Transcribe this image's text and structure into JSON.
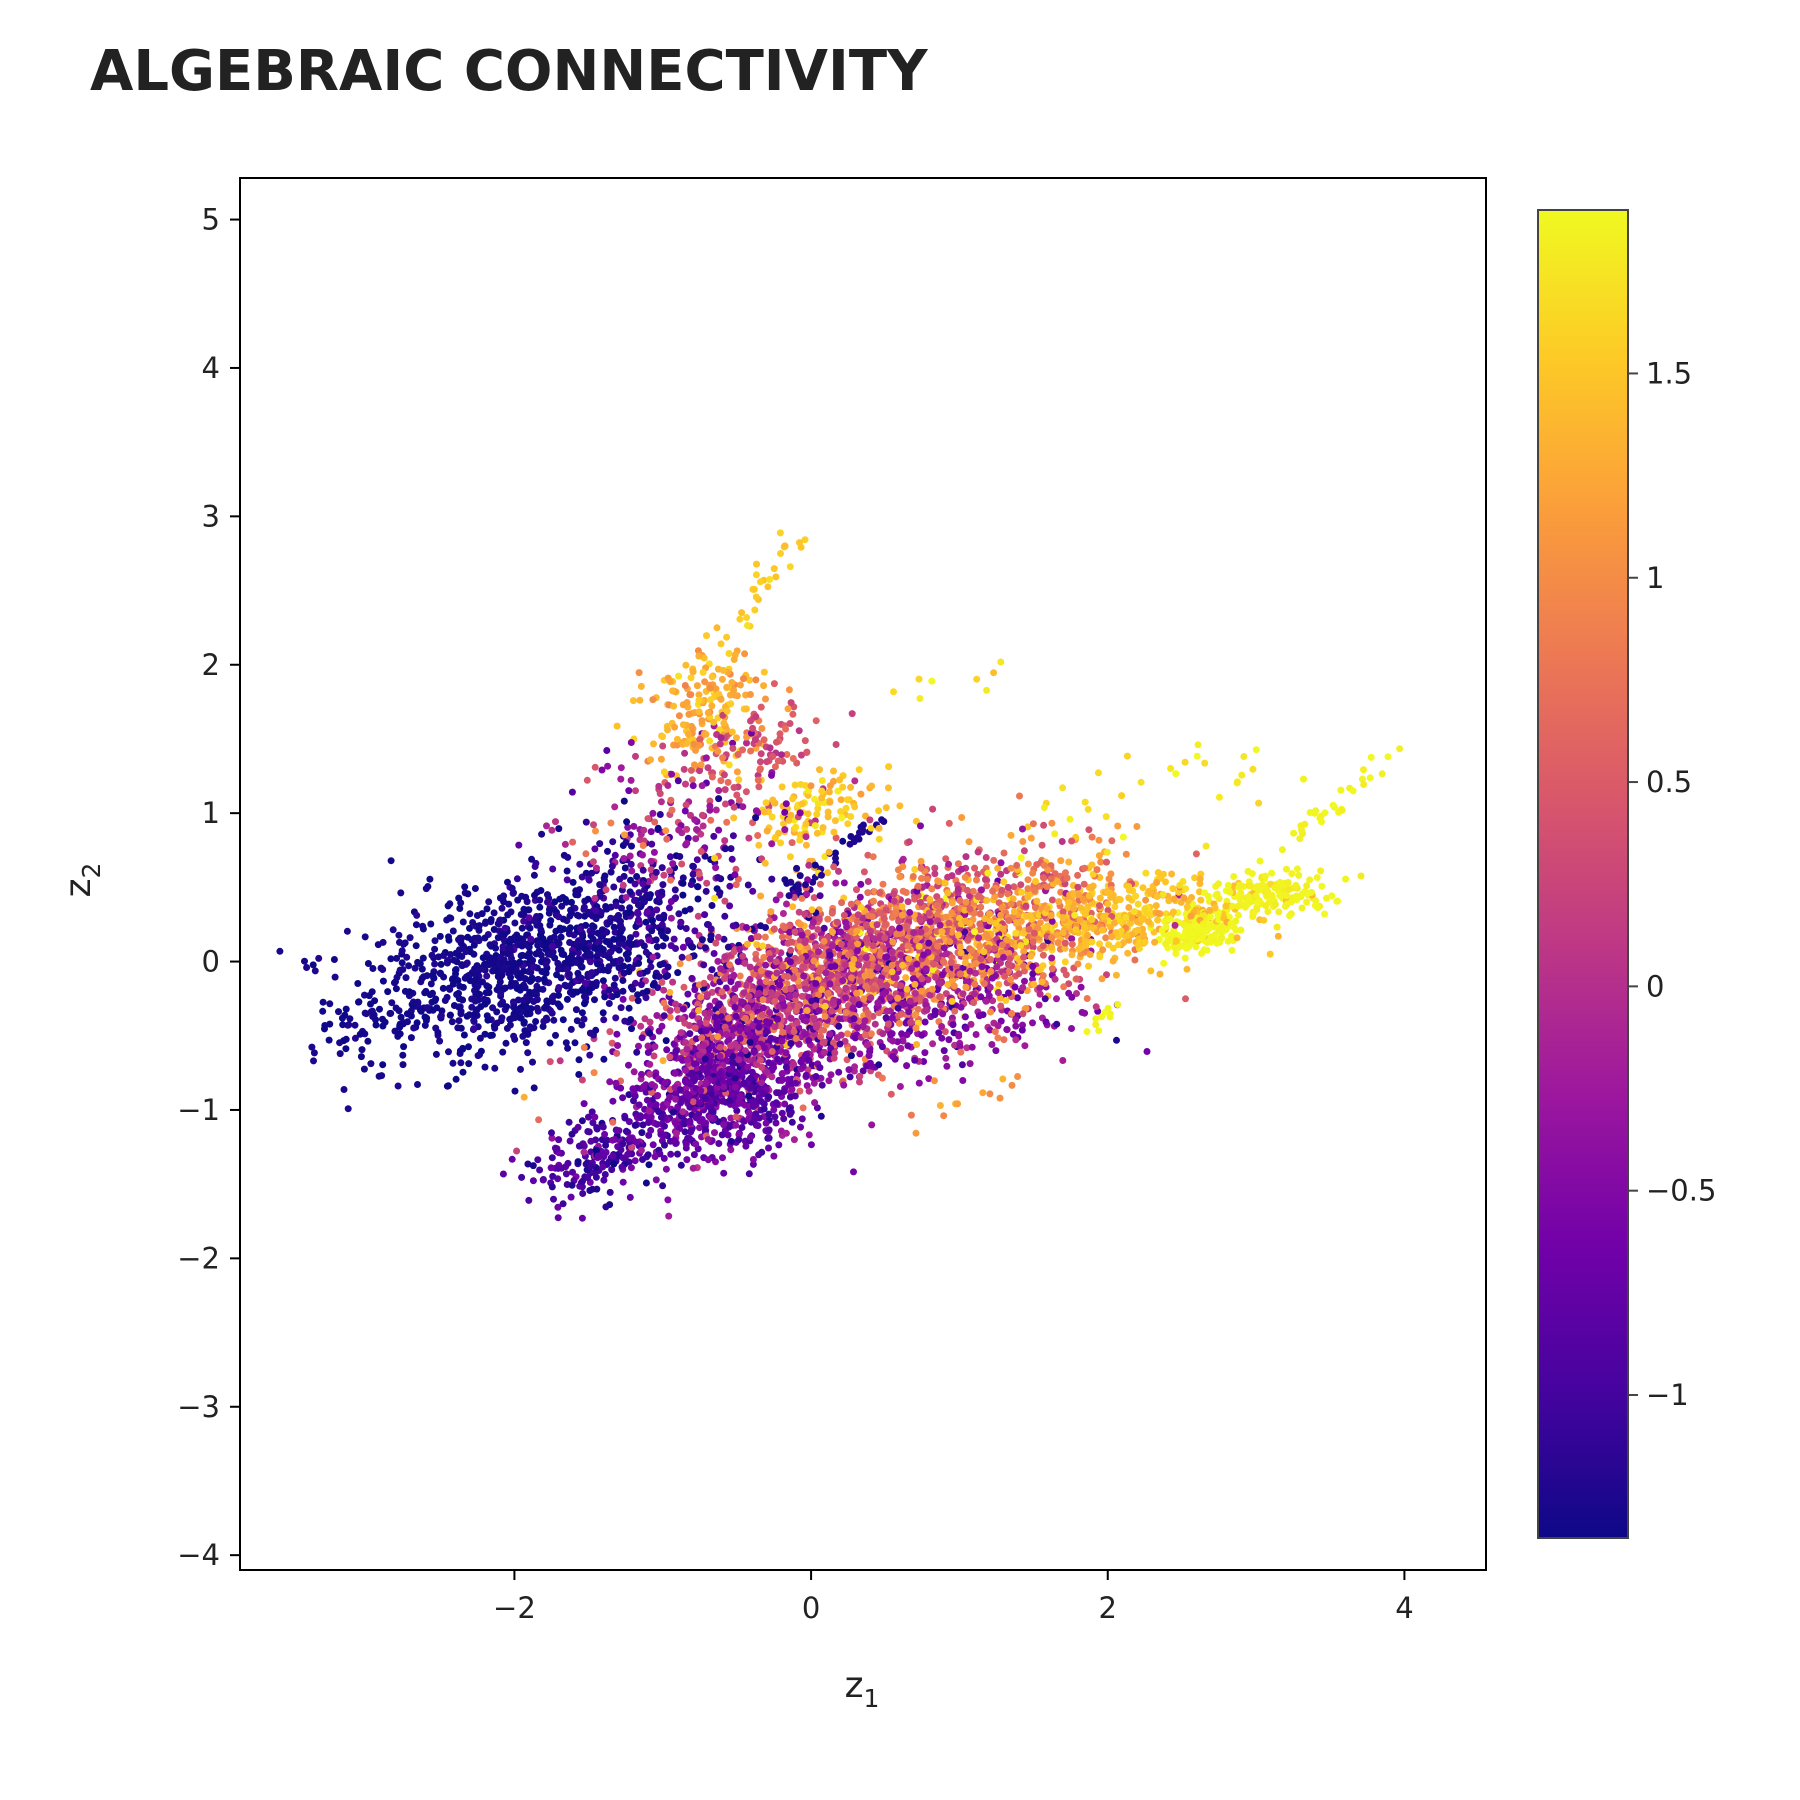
{
  "chart_data": {
    "type": "scatter",
    "title": "ALGEBRAIC CONNECTIVITY",
    "xlabel": "z",
    "xlabel_sub": "1",
    "ylabel": "z",
    "ylabel_sub": "2",
    "xlim": [
      -3.85,
      4.55
    ],
    "ylim": [
      -4.1,
      5.28
    ],
    "xticks": [
      -2,
      0,
      2,
      4
    ],
    "yticks": [
      -4,
      -3,
      -2,
      -1,
      0,
      1,
      2,
      3,
      4,
      5
    ],
    "colorbar": {
      "range": [
        -1.35,
        1.9
      ],
      "ticks": [
        -1,
        -0.5,
        0,
        0.5,
        1,
        1.5
      ],
      "colorscale": "plasma",
      "stops": [
        "#0d0887",
        "#46039f",
        "#7201a8",
        "#9c179e",
        "#bd3786",
        "#d8576b",
        "#ed7953",
        "#fb9f3a",
        "#fdca26",
        "#f0f921"
      ]
    },
    "grid": false,
    "marker_size": 6,
    "clusters": [
      {
        "cx": -2.0,
        "cy": -0.05,
        "sx": 0.55,
        "sy": 0.32,
        "rho": 0.35,
        "n": 900,
        "c": -1.3,
        "cs": 0.05
      },
      {
        "cx": -1.3,
        "cy": 0.25,
        "sx": 0.45,
        "sy": 0.3,
        "rho": 0.3,
        "n": 350,
        "c": -1.15,
        "cs": 0.15
      },
      {
        "cx": -0.55,
        "cy": -0.75,
        "sx": 0.35,
        "sy": 0.3,
        "rho": 0.3,
        "n": 700,
        "c": -0.65,
        "cs": 0.25
      },
      {
        "cx": -1.45,
        "cy": -1.3,
        "sx": 0.25,
        "sy": 0.15,
        "rho": 0.4,
        "n": 150,
        "c": -0.95,
        "cs": 0.2
      },
      {
        "cx": 0.0,
        "cy": -0.15,
        "sx": 0.55,
        "sy": 0.35,
        "rho": 0.55,
        "n": 1300,
        "c": 0.1,
        "cs": 0.45
      },
      {
        "cx": 0.9,
        "cy": 0.15,
        "sx": 0.6,
        "sy": 0.3,
        "rho": 0.45,
        "n": 1100,
        "c": 0.85,
        "cs": 0.4
      },
      {
        "cx": 0.9,
        "cy": -0.25,
        "sx": 0.5,
        "sy": 0.25,
        "rho": 0.3,
        "n": 400,
        "c": -0.35,
        "cs": 0.35
      },
      {
        "cx": 2.0,
        "cy": 0.3,
        "sx": 0.45,
        "sy": 0.15,
        "rho": 0.3,
        "n": 400,
        "c": 1.45,
        "cs": 0.15
      },
      {
        "cx": 2.6,
        "cy": 0.2,
        "sx": 0.12,
        "sy": 0.07,
        "rho": 0.2,
        "n": 180,
        "c": 1.88,
        "cs": 0.02
      },
      {
        "cx": 3.1,
        "cy": 0.45,
        "sx": 0.25,
        "sy": 0.08,
        "rho": 0.3,
        "n": 150,
        "c": 1.85,
        "cs": 0.03
      },
      {
        "cx": -0.7,
        "cy": 1.7,
        "sx": 0.2,
        "sy": 0.2,
        "rho": 0.2,
        "n": 180,
        "c": 1.3,
        "cs": 0.2
      },
      {
        "cx": -0.35,
        "cy": 1.45,
        "sx": 0.2,
        "sy": 0.15,
        "rho": 0.2,
        "n": 80,
        "c": 0.45,
        "cs": 0.2
      },
      {
        "cx": -0.85,
        "cy": 0.9,
        "sx": 0.4,
        "sy": 0.3,
        "rho": 0.3,
        "n": 200,
        "c": -0.1,
        "cs": 0.5
      },
      {
        "cx": 0.05,
        "cy": 1.05,
        "sx": 0.25,
        "sy": 0.15,
        "rho": 0.2,
        "n": 120,
        "c": 1.5,
        "cs": 0.15
      },
      {
        "cx": -0.7,
        "cy": -0.95,
        "sx": 0.3,
        "sy": 0.15,
        "rho": 0.3,
        "n": 200,
        "c": -0.85,
        "cs": 0.2
      }
    ],
    "chains": [
      {
        "x0": -0.15,
        "y0": 0.45,
        "x1": 0.5,
        "y1": 1.0,
        "n": 40,
        "c": -1.25,
        "cs": 0.05,
        "jitter": 0.05
      },
      {
        "x0": -0.75,
        "y0": 1.9,
        "x1": -0.1,
        "y1": 2.85,
        "n": 35,
        "c": 1.55,
        "cs": 0.1,
        "jitter": 0.1
      },
      {
        "x0": 3.2,
        "y0": 0.8,
        "x1": 4.05,
        "y1": 1.5,
        "n": 30,
        "c": 1.85,
        "cs": 0.03,
        "jitter": 0.06
      },
      {
        "x0": 1.6,
        "y0": 1.0,
        "x1": 3.2,
        "y1": 1.3,
        "n": 30,
        "c": 1.75,
        "cs": 0.1,
        "jitter": 0.2
      },
      {
        "x0": 0.5,
        "y0": 1.8,
        "x1": 1.35,
        "y1": 1.95,
        "n": 8,
        "c": 1.75,
        "cs": 0.1,
        "jitter": 0.08
      },
      {
        "x0": 1.9,
        "y0": -0.45,
        "x1": 2.1,
        "y1": -0.25,
        "n": 10,
        "c": 1.85,
        "cs": 0.03,
        "jitter": 0.05
      },
      {
        "x0": -1.6,
        "y0": -1.5,
        "x1": -1.1,
        "y1": -1.2,
        "n": 25,
        "c": -1.1,
        "cs": 0.15,
        "jitter": 0.05
      },
      {
        "x0": -3.3,
        "y0": -0.5,
        "x1": -2.6,
        "y1": -0.3,
        "n": 30,
        "c": -1.3,
        "cs": 0.03,
        "jitter": 0.15
      },
      {
        "x0": 0.6,
        "y0": -1.1,
        "x1": 1.4,
        "y1": -0.85,
        "n": 12,
        "c": 1.2,
        "cs": 0.2,
        "jitter": 0.08
      }
    ]
  }
}
